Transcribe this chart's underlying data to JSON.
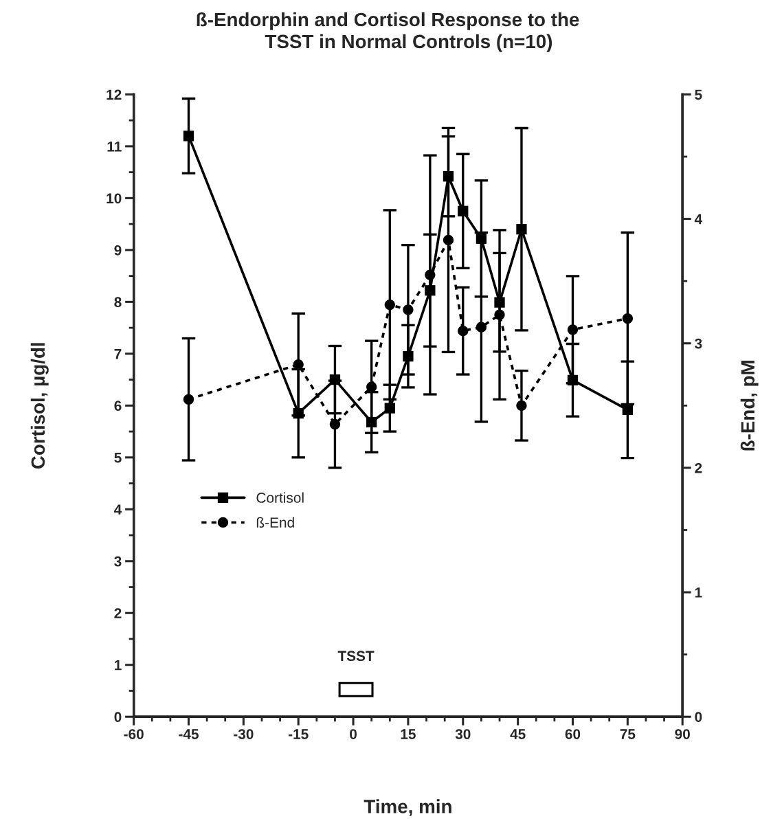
{
  "chart_data": {
    "type": "line",
    "title": "ß-Endorphin and Cortisol Response to the\n        TSST in Normal Controls (n=10)",
    "xlabel": "Time, min",
    "ylabel": "Cortisol, µg/dl",
    "y2label": "ß-End, pM",
    "xlim": [
      -60,
      90
    ],
    "xticks": [
      -60,
      -45,
      -30,
      -15,
      0,
      15,
      30,
      45,
      60,
      75,
      90
    ],
    "ylim": [
      0,
      12
    ],
    "yticks": [
      0,
      1,
      2,
      3,
      4,
      5,
      6,
      7,
      8,
      9,
      10,
      11,
      12
    ],
    "y2lim": [
      0,
      5
    ],
    "y2ticks": [
      0,
      1,
      2,
      3,
      4,
      5
    ],
    "legend": "center left",
    "annotations": [
      "TSST"
    ],
    "series": [
      {
        "name": "Cortisol",
        "color": "#000000",
        "marker": "square",
        "line_style": "solid",
        "x": [
          -45,
          -15,
          -5,
          5,
          10,
          15,
          21,
          26,
          30,
          35,
          40,
          46,
          60,
          75
        ],
        "values": [
          11.2,
          5.85,
          6.5,
          5.68,
          5.95,
          6.95,
          8.22,
          10.42,
          9.75,
          9.22,
          7.99,
          9.4,
          6.49,
          5.92
        ],
        "errors": [
          0.72,
          0.85,
          0.65,
          0.58,
          0.45,
          0.6,
          1.08,
          0.77,
          1.1,
          1.12,
          0.95,
          1.95,
          0.7,
          0.93
        ]
      },
      {
        "name": "ß-End",
        "color": "#000000",
        "marker": "circle",
        "line_style": "dotted",
        "axis": "y2",
        "x": [
          -45,
          -15,
          -5,
          5,
          10,
          15,
          21,
          26,
          30,
          35,
          40,
          46,
          60,
          75
        ],
        "values": [
          2.55,
          2.83,
          2.35,
          2.65,
          3.31,
          3.27,
          3.55,
          3.83,
          3.1,
          3.13,
          3.23,
          2.5,
          3.11,
          3.2
        ],
        "errors": [
          0.49,
          0.41,
          0.35,
          0.37,
          0.76,
          0.52,
          0.96,
          0.9,
          0.35,
          0.76,
          0.68,
          0.28,
          0.43,
          0.69
        ]
      }
    ]
  }
}
